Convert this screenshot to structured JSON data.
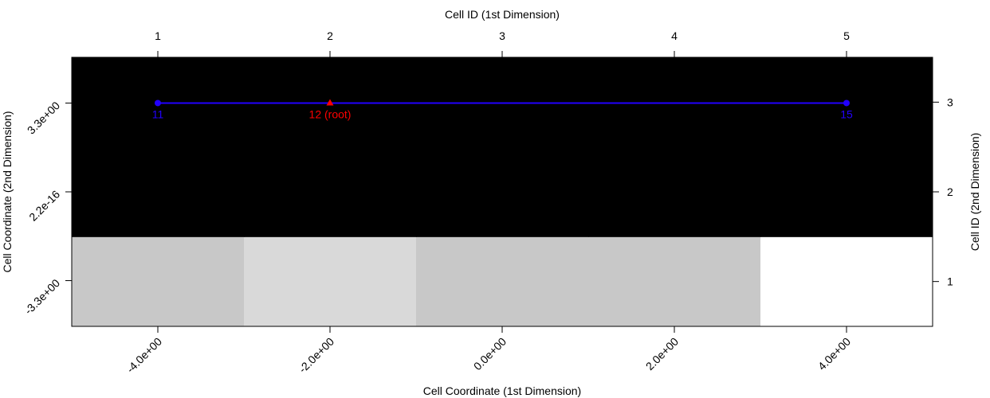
{
  "chart_data": {
    "type": "heatmap",
    "x_axis": {
      "label": "Cell Coordinate (1st Dimension)",
      "ticks": [
        -4,
        -2,
        0,
        2,
        4
      ],
      "tick_labels": [
        "-4.0e+00",
        "-2.0e+00",
        "0.0e+00",
        "2.0e+00",
        "4.0e+00"
      ],
      "range": [
        -5,
        5
      ]
    },
    "x2_axis": {
      "label": "Cell ID (1st Dimension)",
      "tick_labels": [
        "1",
        "2",
        "3",
        "4",
        "5"
      ]
    },
    "y_axis": {
      "label": "Cell Coordinate (2nd Dimension)",
      "ticks": [
        -3.3,
        0,
        3.3
      ],
      "tick_labels": [
        "-3.3e+00",
        "2.2e-16",
        "3.3e+00"
      ],
      "range": [
        -5,
        5
      ]
    },
    "y2_axis": {
      "label": "Cell ID (2nd Dimension)",
      "tick_labels": [
        "1",
        "2",
        "3"
      ]
    },
    "cell_columns": 5,
    "cell_rows": 3,
    "cells": [
      {
        "row": 1,
        "col": 1,
        "color": "#c8c8c8"
      },
      {
        "row": 1,
        "col": 2,
        "color": "#d9d9d9"
      },
      {
        "row": 1,
        "col": 3,
        "color": "#c8c8c8"
      },
      {
        "row": 1,
        "col": 4,
        "color": "#c8c8c8"
      },
      {
        "row": 1,
        "col": 5,
        "color": "#ffffff"
      },
      {
        "row": 2,
        "col": 1,
        "color": "#000000"
      },
      {
        "row": 2,
        "col": 2,
        "color": "#000000"
      },
      {
        "row": 2,
        "col": 3,
        "color": "#000000"
      },
      {
        "row": 2,
        "col": 4,
        "color": "#000000"
      },
      {
        "row": 2,
        "col": 5,
        "color": "#000000"
      },
      {
        "row": 3,
        "col": 1,
        "color": "#000000"
      },
      {
        "row": 3,
        "col": 2,
        "color": "#000000"
      },
      {
        "row": 3,
        "col": 3,
        "color": "#000000"
      },
      {
        "row": 3,
        "col": 4,
        "color": "#000000"
      },
      {
        "row": 3,
        "col": 5,
        "color": "#000000"
      }
    ],
    "path": {
      "color": "#2200ff",
      "points": [
        {
          "x": -4,
          "y": 3.3,
          "label": "11",
          "marker": "circle",
          "color": "#2200ff"
        },
        {
          "x": -2,
          "y": 3.3,
          "label": "12 (root)",
          "marker": "triangle",
          "color": "#ff0000"
        },
        {
          "x": 4,
          "y": 3.3,
          "label": "15",
          "marker": "circle",
          "color": "#2200ff"
        }
      ]
    }
  }
}
